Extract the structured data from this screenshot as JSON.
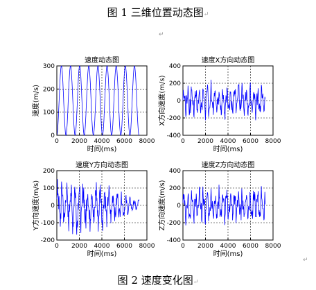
{
  "document": {
    "figure1_caption": "图 1  三维位置动态图",
    "figure2_caption": "图 2  速度变化图",
    "paragraph_mark": "↵"
  },
  "colors": {
    "series": "#0000ff",
    "grid": "#000000",
    "axis": "#000000"
  },
  "chart_data": [
    {
      "type": "line",
      "title": "速度动态图",
      "xlabel": "时间(ms)",
      "ylabel": "速度(m/s)",
      "xlim": [
        0,
        8000
      ],
      "ylim": [
        0,
        300
      ],
      "xticks": [
        0,
        2000,
        4000,
        6000,
        8000
      ],
      "yticks": [
        0,
        100,
        200,
        300
      ],
      "grid": true,
      "series": [
        {
          "values_desc": "oscillating speed",
          "x_end": 7300,
          "periods": 9,
          "min": 0,
          "max": 300,
          "wave": "sinusoid"
        }
      ]
    },
    {
      "type": "line",
      "title": "速度X方向动态图",
      "xlabel": "时间(ms)",
      "ylabel": "X方向速度(m/s)",
      "xlim": [
        0,
        8000
      ],
      "ylim": [
        -400,
        400
      ],
      "xticks": [
        0,
        2000,
        4000,
        6000,
        8000
      ],
      "yticks": [
        -400,
        -200,
        0,
        200,
        400
      ],
      "grid": true,
      "series": [
        {
          "x_end": 7300,
          "min": -250,
          "max": 250,
          "wave": "noisy"
        }
      ]
    },
    {
      "type": "line",
      "title": "速度Y方向动态图",
      "xlabel": "时间(ms)",
      "ylabel": "Y方向速度(m/s)",
      "xlim": [
        0,
        8000
      ],
      "ylim": [
        -200,
        200
      ],
      "xticks": [
        0,
        2000,
        4000,
        6000,
        8000
      ],
      "yticks": [
        -200,
        -100,
        0,
        100,
        200
      ],
      "grid": true,
      "series": [
        {
          "x_end": 7300,
          "min": -170,
          "max": 180,
          "wave": "decaying"
        }
      ]
    },
    {
      "type": "line",
      "title": "速度Z方向动态图",
      "xlabel": "时间(ms)",
      "ylabel": "Z方向速度(m/s)",
      "xlim": [
        0,
        8000
      ],
      "ylim": [
        -400,
        400
      ],
      "xticks": [
        0,
        2000,
        4000,
        6000,
        8000
      ],
      "yticks": [
        -400,
        -200,
        0,
        200,
        400
      ],
      "grid": true,
      "series": [
        {
          "x_end": 7300,
          "min": -250,
          "max": 260,
          "wave": "noisy"
        }
      ]
    }
  ]
}
